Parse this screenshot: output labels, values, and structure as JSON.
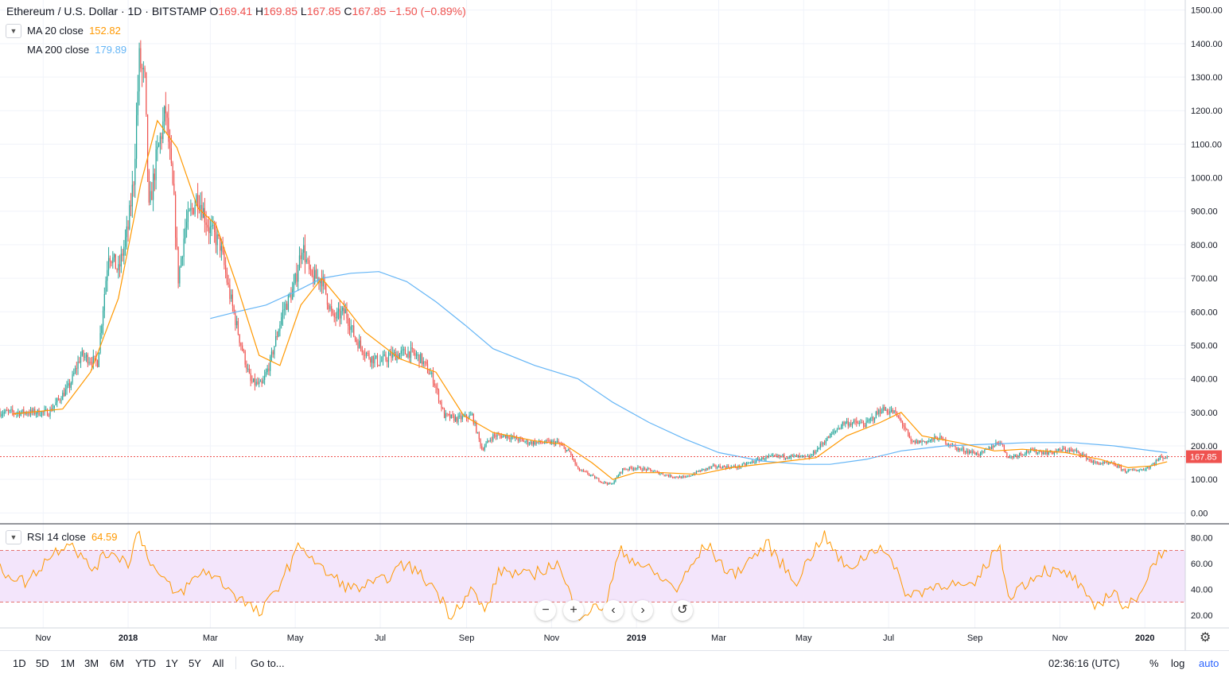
{
  "header": {
    "symbol": "Ethereum / U.S. Dollar · 1D · BITSTAMP",
    "ohlc": [
      {
        "k": "O",
        "v": "169.41"
      },
      {
        "k": "H",
        "v": "169.85"
      },
      {
        "k": "L",
        "v": "167.85"
      },
      {
        "k": "C",
        "v": "167.85"
      }
    ],
    "change": "−1.50 (−0.89%)"
  },
  "indicators": {
    "ma20": {
      "label": "MA 20 close",
      "value": "152.82",
      "color": "#ff9800"
    },
    "ma200": {
      "label": "MA 200 close",
      "value": "179.89",
      "color": "#64b5f6"
    },
    "rsi": {
      "label": "RSI 14 close",
      "value": "64.59",
      "color": "#ff9800"
    }
  },
  "price_tag": "167.85",
  "bottom_toolbar": {
    "ranges": [
      "1D",
      "5D",
      "1M",
      "3M",
      "6M",
      "YTD",
      "1Y",
      "5Y",
      "All"
    ],
    "goto": "Go to...",
    "clock": "02:36:16 (UTC)",
    "percent": "%",
    "log": "log",
    "auto": "auto"
  },
  "colors": {
    "up": "#26a69a",
    "down": "#ef5350",
    "rsi_band": "#f3e5fb"
  },
  "icons": {
    "zoom_out": "minus-icon",
    "zoom_in": "plus-icon",
    "scroll_left": "chevron-left-icon",
    "scroll_right": "chevron-right-icon",
    "reset": "reset-icon",
    "settings": "gear-icon"
  },
  "chart_data": {
    "type": "candlestick",
    "price_axis": {
      "ticks": [
        "0.00",
        "100.00",
        "200.00",
        "300.00",
        "400.00",
        "500.00",
        "600.00",
        "700.00",
        "800.00",
        "900.00",
        "1000.00",
        "1100.00",
        "1200.00",
        "1300.00",
        "1400.00",
        "1500.00"
      ],
      "range": [
        -30,
        1530
      ]
    },
    "rsi_axis": {
      "ticks": [
        "20.00",
        "40.00",
        "60.00",
        "80.00"
      ],
      "range": [
        10,
        90
      ],
      "bands": [
        30,
        70
      ]
    },
    "time_axis": {
      "labels": [
        "Nov",
        "2018",
        "Mar",
        "May",
        "Jul",
        "Sep",
        "Nov",
        "2019",
        "Mar",
        "May",
        "Jul",
        "Sep",
        "Nov",
        "2020"
      ]
    },
    "last_price": 167.85,
    "price_path": [
      [
        "2017-10-01",
        300
      ],
      [
        "2017-10-20",
        300
      ],
      [
        "2017-11-05",
        300
      ],
      [
        "2017-11-20",
        380
      ],
      [
        "2017-11-28",
        470
      ],
      [
        "2017-12-10",
        450
      ],
      [
        "2017-12-18",
        780
      ],
      [
        "2017-12-25",
        720
      ],
      [
        "2018-01-01",
        850
      ],
      [
        "2018-01-05",
        1000
      ],
      [
        "2018-01-09",
        1350
      ],
      [
        "2018-01-13",
        1280
      ],
      [
        "2018-01-16",
        900
      ],
      [
        "2018-01-21",
        1050
      ],
      [
        "2018-01-28",
        1200
      ],
      [
        "2018-02-03",
        920
      ],
      [
        "2018-02-06",
        700
      ],
      [
        "2018-02-11",
        850
      ],
      [
        "2018-02-20",
        950
      ],
      [
        "2018-02-28",
        850
      ],
      [
        "2018-03-08",
        800
      ],
      [
        "2018-03-15",
        650
      ],
      [
        "2018-03-22",
        520
      ],
      [
        "2018-03-30",
        390
      ],
      [
        "2018-04-07",
        380
      ],
      [
        "2018-04-13",
        450
      ],
      [
        "2018-04-22",
        600
      ],
      [
        "2018-04-30",
        670
      ],
      [
        "2018-05-06",
        800
      ],
      [
        "2018-05-12",
        700
      ],
      [
        "2018-05-20",
        700
      ],
      [
        "2018-05-28",
        580
      ],
      [
        "2018-06-06",
        600
      ],
      [
        "2018-06-13",
        520
      ],
      [
        "2018-06-22",
        470
      ],
      [
        "2018-06-30",
        450
      ],
      [
        "2018-07-10",
        470
      ],
      [
        "2018-07-22",
        480
      ],
      [
        "2018-07-30",
        460
      ],
      [
        "2018-08-08",
        400
      ],
      [
        "2018-08-16",
        290
      ],
      [
        "2018-08-25",
        280
      ],
      [
        "2018-09-05",
        290
      ],
      [
        "2018-09-12",
        190
      ],
      [
        "2018-09-20",
        230
      ],
      [
        "2018-09-30",
        230
      ],
      [
        "2018-10-15",
        210
      ],
      [
        "2018-11-05",
        210
      ],
      [
        "2018-11-14",
        180
      ],
      [
        "2018-11-20",
        130
      ],
      [
        "2018-11-28",
        115
      ],
      [
        "2018-12-07",
        93
      ],
      [
        "2018-12-14",
        85
      ],
      [
        "2018-12-22",
        130
      ],
      [
        "2018-12-31",
        135
      ],
      [
        "2019-01-10",
        128
      ],
      [
        "2019-01-25",
        110
      ],
      [
        "2019-02-05",
        105
      ],
      [
        "2019-02-15",
        125
      ],
      [
        "2019-02-25",
        138
      ],
      [
        "2019-03-15",
        137
      ],
      [
        "2019-04-03",
        165
      ],
      [
        "2019-04-20",
        170
      ],
      [
        "2019-05-05",
        165
      ],
      [
        "2019-05-15",
        210
      ],
      [
        "2019-05-30",
        270
      ],
      [
        "2019-06-15",
        265
      ],
      [
        "2019-06-26",
        310
      ],
      [
        "2019-07-05",
        300
      ],
      [
        "2019-07-12",
        260
      ],
      [
        "2019-07-17",
        210
      ],
      [
        "2019-07-30",
        215
      ],
      [
        "2019-08-06",
        225
      ],
      [
        "2019-08-20",
        190
      ],
      [
        "2019-09-05",
        175
      ],
      [
        "2019-09-19",
        215
      ],
      [
        "2019-09-25",
        165
      ],
      [
        "2019-10-10",
        185
      ],
      [
        "2019-10-25",
        180
      ],
      [
        "2019-11-05",
        190
      ],
      [
        "2019-11-15",
        180
      ],
      [
        "2019-11-25",
        150
      ],
      [
        "2019-12-10",
        145
      ],
      [
        "2019-12-18",
        125
      ],
      [
        "2019-12-31",
        130
      ],
      [
        "2020-01-05",
        140
      ],
      [
        "2020-01-12",
        165
      ],
      [
        "2020-01-17",
        168
      ]
    ],
    "ma20_path": [
      [
        "2017-10-10",
        295
      ],
      [
        "2017-11-15",
        310
      ],
      [
        "2017-12-05",
        420
      ],
      [
        "2017-12-25",
        640
      ],
      [
        "2018-01-10",
        980
      ],
      [
        "2018-01-22",
        1170
      ],
      [
        "2018-02-05",
        1090
      ],
      [
        "2018-02-20",
        910
      ],
      [
        "2018-03-05",
        860
      ],
      [
        "2018-03-20",
        680
      ],
      [
        "2018-04-05",
        470
      ],
      [
        "2018-04-20",
        440
      ],
      [
        "2018-05-05",
        620
      ],
      [
        "2018-05-20",
        700
      ],
      [
        "2018-06-05",
        620
      ],
      [
        "2018-06-20",
        540
      ],
      [
        "2018-07-15",
        460
      ],
      [
        "2018-08-10",
        420
      ],
      [
        "2018-08-30",
        290
      ],
      [
        "2018-09-20",
        240
      ],
      [
        "2018-10-20",
        215
      ],
      [
        "2018-11-10",
        205
      ],
      [
        "2018-11-30",
        150
      ],
      [
        "2018-12-15",
        100
      ],
      [
        "2018-12-31",
        120
      ],
      [
        "2019-01-20",
        120
      ],
      [
        "2019-02-15",
        115
      ],
      [
        "2019-03-10",
        135
      ],
      [
        "2019-04-10",
        150
      ],
      [
        "2019-05-10",
        165
      ],
      [
        "2019-06-01",
        230
      ],
      [
        "2019-06-25",
        270
      ],
      [
        "2019-07-10",
        300
      ],
      [
        "2019-07-25",
        230
      ],
      [
        "2019-08-20",
        210
      ],
      [
        "2019-09-15",
        185
      ],
      [
        "2019-10-05",
        190
      ],
      [
        "2019-11-05",
        180
      ],
      [
        "2019-11-30",
        160
      ],
      [
        "2019-12-20",
        135
      ],
      [
        "2020-01-05",
        140
      ],
      [
        "2020-01-17",
        152.82
      ]
    ],
    "ma200_path": [
      [
        "2018-03-01",
        580
      ],
      [
        "2018-03-20",
        600
      ],
      [
        "2018-04-10",
        620
      ],
      [
        "2018-05-01",
        660
      ],
      [
        "2018-05-20",
        700
      ],
      [
        "2018-06-10",
        715
      ],
      [
        "2018-06-30",
        720
      ],
      [
        "2018-07-20",
        690
      ],
      [
        "2018-08-10",
        630
      ],
      [
        "2018-08-31",
        560
      ],
      [
        "2018-09-20",
        490
      ],
      [
        "2018-10-20",
        440
      ],
      [
        "2018-11-20",
        400
      ],
      [
        "2018-12-15",
        330
      ],
      [
        "2019-01-10",
        270
      ],
      [
        "2019-02-05",
        220
      ],
      [
        "2019-03-01",
        180
      ],
      [
        "2019-04-01",
        155
      ],
      [
        "2019-05-01",
        145
      ],
      [
        "2019-05-20",
        145
      ],
      [
        "2019-06-15",
        160
      ],
      [
        "2019-07-10",
        185
      ],
      [
        "2019-08-10",
        200
      ],
      [
        "2019-09-10",
        205
      ],
      [
        "2019-10-10",
        210
      ],
      [
        "2019-11-10",
        210
      ],
      [
        "2019-12-10",
        200
      ],
      [
        "2020-01-17",
        179.89
      ]
    ],
    "rsi_path": [
      [
        "2017-10-01",
        55
      ],
      [
        "2017-10-20",
        45
      ],
      [
        "2017-11-05",
        65
      ],
      [
        "2017-11-20",
        78
      ],
      [
        "2017-12-05",
        55
      ],
      [
        "2017-12-20",
        70
      ],
      [
        "2018-01-01",
        60
      ],
      [
        "2018-01-08",
        85
      ],
      [
        "2018-01-20",
        55
      ],
      [
        "2018-02-05",
        35
      ],
      [
        "2018-02-25",
        55
      ],
      [
        "2018-03-10",
        45
      ],
      [
        "2018-03-20",
        35
      ],
      [
        "2018-04-06",
        20
      ],
      [
        "2018-04-20",
        45
      ],
      [
        "2018-05-05",
        75
      ],
      [
        "2018-05-20",
        55
      ],
      [
        "2018-06-10",
        40
      ],
      [
        "2018-06-30",
        45
      ],
      [
        "2018-07-20",
        60
      ],
      [
        "2018-08-10",
        40
      ],
      [
        "2018-08-20",
        20
      ],
      [
        "2018-09-05",
        40
      ],
      [
        "2018-09-14",
        22
      ],
      [
        "2018-09-25",
        55
      ],
      [
        "2018-10-15",
        50
      ],
      [
        "2018-11-05",
        60
      ],
      [
        "2018-11-20",
        20
      ],
      [
        "2018-12-10",
        28
      ],
      [
        "2018-12-20",
        70
      ],
      [
        "2019-01-10",
        55
      ],
      [
        "2019-01-30",
        40
      ],
      [
        "2019-02-20",
        75
      ],
      [
        "2019-03-10",
        50
      ],
      [
        "2019-04-05",
        75
      ],
      [
        "2019-04-25",
        45
      ],
      [
        "2019-05-15",
        82
      ],
      [
        "2019-06-01",
        55
      ],
      [
        "2019-06-26",
        75
      ],
      [
        "2019-07-15",
        35
      ],
      [
        "2019-08-10",
        45
      ],
      [
        "2019-08-30",
        40
      ],
      [
        "2019-09-18",
        75
      ],
      [
        "2019-09-25",
        35
      ],
      [
        "2019-10-20",
        55
      ],
      [
        "2019-11-10",
        50
      ],
      [
        "2019-11-25",
        25
      ],
      [
        "2019-12-10",
        40
      ],
      [
        "2019-12-18",
        22
      ],
      [
        "2020-01-01",
        45
      ],
      [
        "2020-01-12",
        70
      ],
      [
        "2020-01-17",
        64.59
      ]
    ]
  }
}
